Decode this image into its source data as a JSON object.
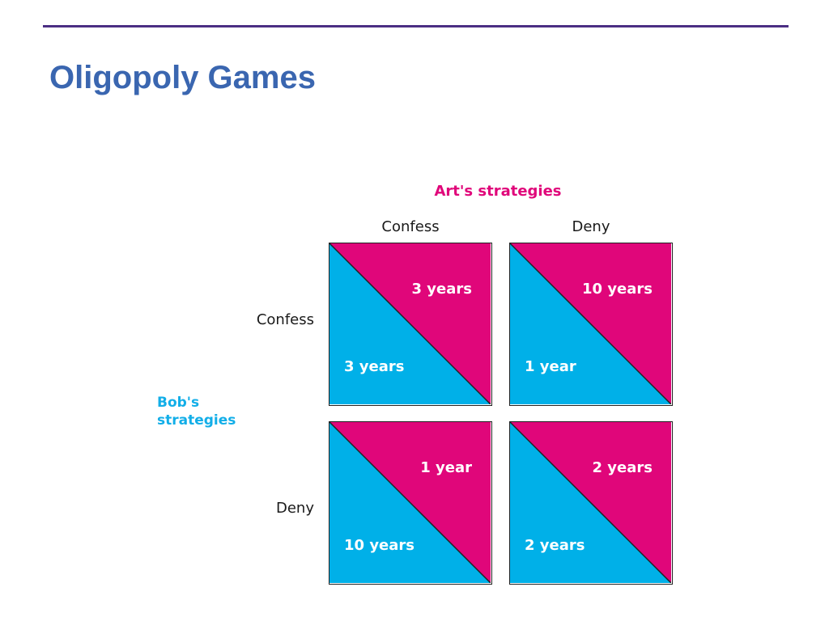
{
  "slide": {
    "title": "Oligopoly Games"
  },
  "colors": {
    "title": "#3a66b0",
    "rule": "#4b2e83",
    "art": "#e0067a",
    "bob": "#00b0e8"
  },
  "matrix": {
    "art_heading": "Art's strategies",
    "bob_heading_line1": "Bob's",
    "bob_heading_line2": "strategies",
    "columns": [
      "Confess",
      "Deny"
    ],
    "rows": [
      "Confess",
      "Deny"
    ],
    "cells": [
      [
        {
          "art": "3 years",
          "bob": "3 years"
        },
        {
          "art": "10 years",
          "bob": "1 year"
        }
      ],
      [
        {
          "art": "1 year",
          "bob": "10 years"
        },
        {
          "art": "2 years",
          "bob": "2 years"
        }
      ]
    ]
  }
}
